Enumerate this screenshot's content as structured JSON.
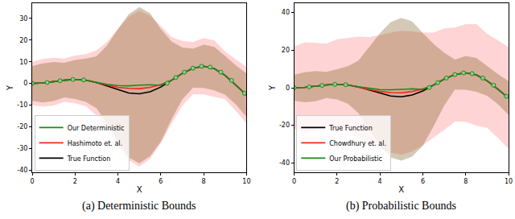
{
  "chart_data": [
    {
      "type": "line",
      "title": "(a) Deterministic Bounds",
      "xlabel": "X",
      "ylabel": "Y",
      "x": [
        0,
        0.5,
        1,
        1.5,
        2,
        2.5,
        3,
        3.5,
        4,
        4.5,
        5,
        5.5,
        6,
        6.5,
        7,
        7.5,
        8,
        8.5,
        9,
        9.5,
        10
      ],
      "xlim": [
        0,
        10
      ],
      "xticks": [
        0,
        2,
        4,
        6,
        8,
        10
      ],
      "ylim": [
        -41,
        37
      ],
      "yticks": [
        -40,
        -30,
        -20,
        -10,
        0,
        10,
        20,
        30
      ],
      "legend": "lower left",
      "series": [
        {
          "name": "True Function",
          "color": "#000000",
          "values": [
            0,
            0.24,
            0.84,
            1.5,
            1.82,
            1.5,
            0.42,
            -1.23,
            -3.03,
            -4.4,
            -4.79,
            -3.88,
            -1.68,
            1.4,
            4.6,
            7.04,
            7.91,
            6.83,
            3.71,
            -0.72,
            -5.44
          ]
        },
        {
          "name": "Hashimoto et. al.",
          "color": "#f0281e",
          "values": [
            0,
            0.24,
            0.84,
            1.5,
            1.82,
            1.5,
            0.3,
            -0.8,
            -1.8,
            -2.3,
            -2.4,
            -1.8,
            -0.5,
            1.4,
            4.6,
            7.04,
            7.91,
            6.83,
            3.71,
            -0.72,
            -5.44
          ],
          "upper": [
            10,
            11.24,
            11.84,
            11.5,
            12.82,
            13.5,
            15.3,
            19.2,
            25.2,
            30.7,
            33.6,
            31.2,
            26.5,
            21.4,
            19.6,
            19.04,
            20.91,
            19.83,
            14.71,
            11.28,
            7.56
          ],
          "lower": [
            -10,
            -10.76,
            -10.16,
            -8.5,
            -9.18,
            -10.5,
            -14.7,
            -20.8,
            -28.8,
            -35.3,
            -38.4,
            -34.8,
            -27.5,
            -18.6,
            -10.4,
            -4.96,
            -5.09,
            -6.17,
            -7.29,
            -12.72,
            -18.44
          ]
        },
        {
          "name": "Our Deterministic",
          "color": "#1b8a1b",
          "values": [
            0,
            0.24,
            0.84,
            1.5,
            1.82,
            1.5,
            0.5,
            -0.4,
            -1.0,
            -1.1,
            -0.8,
            -0.6,
            -0.9,
            1.4,
            4.6,
            7.04,
            7.91,
            6.83,
            3.71,
            -0.72,
            -5.44
          ],
          "upper": [
            8,
            9.24,
            9.84,
            9.5,
            10.82,
            11.5,
            12.5,
            17.6,
            25,
            31.9,
            35.2,
            32.4,
            25.1,
            19.4,
            16.6,
            16.04,
            17.91,
            16.83,
            12.71,
            8.28,
            4.56
          ],
          "lower": [
            -8,
            -8.76,
            -8.16,
            -6.5,
            -7.18,
            -8.5,
            -11.5,
            -18.4,
            -27,
            -34.1,
            -36.8,
            -33.6,
            -26.9,
            -16.6,
            -7.4,
            -1.96,
            -2.09,
            -3.17,
            -5.29,
            -9.72,
            -15.44
          ]
        }
      ],
      "observations": {
        "x": [
          0,
          0.7,
          1.3,
          1.9,
          2.4,
          6.3,
          6.7,
          7.1,
          7.5,
          7.9,
          8.3,
          8.8,
          9.3,
          9.9
        ],
        "y": [
          0,
          0.45,
          1.25,
          1.8,
          1.62,
          0.11,
          2.74,
          5.18,
          7.04,
          7.89,
          7.53,
          5.19,
          1.38,
          -4.53
        ]
      }
    },
    {
      "type": "line",
      "title": "(b) Probabilistic Bounds",
      "xlabel": "X",
      "ylabel": "Y",
      "x": [
        0,
        0.5,
        1,
        1.5,
        2,
        2.5,
        3,
        3.5,
        4,
        4.5,
        5,
        5.5,
        6,
        6.5,
        7,
        7.5,
        8,
        8.5,
        9,
        9.5,
        10
      ],
      "xlim": [
        0,
        10
      ],
      "xticks": [
        0,
        2,
        4,
        6,
        8,
        10
      ],
      "ylim": [
        -45,
        45
      ],
      "yticks": [
        -40,
        -20,
        0,
        20,
        40
      ],
      "legend": "lower left",
      "series": [
        {
          "name": "True Function",
          "color": "#000000",
          "values": [
            0,
            0.24,
            0.84,
            1.5,
            1.82,
            1.5,
            0.42,
            -1.23,
            -3.03,
            -4.4,
            -4.79,
            -3.88,
            -1.68,
            1.4,
            4.6,
            7.04,
            7.91,
            6.83,
            3.71,
            -0.72,
            -5.44
          ]
        },
        {
          "name": "Chowdhury et. al.",
          "color": "#f0281e",
          "values": [
            0,
            0.24,
            0.84,
            1.5,
            1.82,
            1.5,
            0.2,
            -1.0,
            -2.0,
            -2.6,
            -2.7,
            -2.0,
            -0.6,
            1.4,
            4.6,
            7.04,
            7.91,
            6.83,
            3.71,
            -0.72,
            -5.44
          ],
          "upper": [
            22,
            24.24,
            23.84,
            23.5,
            25.82,
            26.5,
            27.2,
            27,
            28,
            29.4,
            30.3,
            30,
            29.4,
            29.4,
            31.6,
            32.04,
            33.91,
            33.83,
            28.71,
            25.28,
            21.56
          ],
          "lower": [
            -22,
            -23.76,
            -22.16,
            -20.5,
            -22.18,
            -23.5,
            -26.8,
            -29,
            -32,
            -34.6,
            -35.7,
            -34,
            -30.6,
            -26.6,
            -22.4,
            -17.96,
            -18.09,
            -20.17,
            -21.29,
            -26.72,
            -32.44
          ]
        },
        {
          "name": "Our Probabilistic",
          "color": "#1b8a1b",
          "values": [
            0,
            0.24,
            0.84,
            1.5,
            1.82,
            1.5,
            0.5,
            -0.4,
            -1.0,
            -1.1,
            -0.8,
            -0.6,
            -0.9,
            1.4,
            4.6,
            7.04,
            7.91,
            6.83,
            3.71,
            -0.72,
            -5.44
          ],
          "upper": [
            7,
            8.24,
            8.84,
            8.5,
            9.82,
            11.5,
            14.5,
            21.6,
            29,
            34.9,
            37.2,
            35.4,
            29.1,
            23.4,
            18.6,
            15.04,
            16.91,
            15.83,
            11.71,
            7.28,
            3.56
          ],
          "lower": [
            -7,
            -7.76,
            -7.16,
            -5.5,
            -6.18,
            -8.5,
            -13.5,
            -22.4,
            -31,
            -37.1,
            -38.8,
            -36.6,
            -30.9,
            -20.6,
            -9.4,
            -0.96,
            -1.09,
            -2.17,
            -4.29,
            -8.72,
            -14.44
          ]
        }
      ],
      "observations": {
        "x": [
          0,
          0.7,
          1.3,
          1.9,
          2.4,
          6.3,
          6.7,
          7.1,
          7.5,
          7.9,
          8.3,
          8.8,
          9.3,
          9.9
        ],
        "y": [
          0,
          0.45,
          1.25,
          1.8,
          1.62,
          0.11,
          2.74,
          5.18,
          7.04,
          7.89,
          7.53,
          5.19,
          1.38,
          -4.53
        ]
      }
    }
  ]
}
